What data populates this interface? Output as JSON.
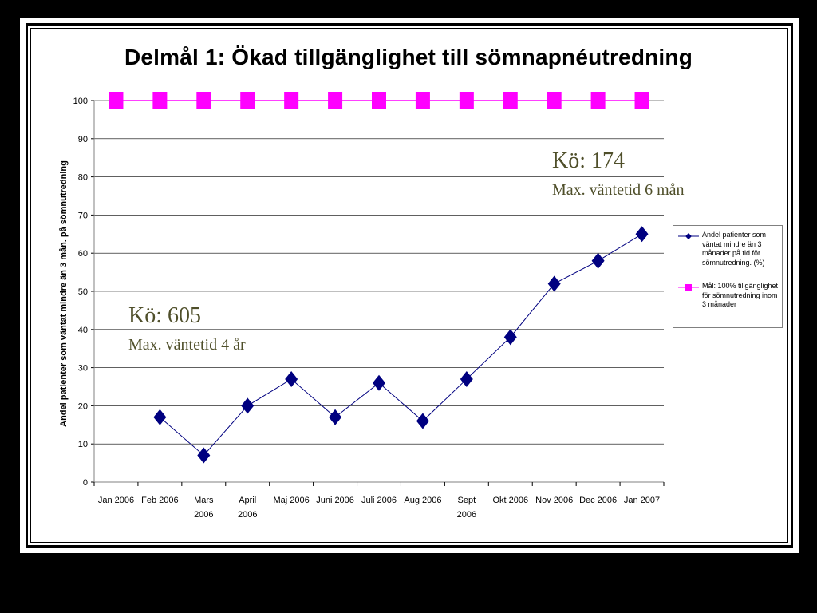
{
  "title": "Delmål 1: Ökad tillgänglighet till sömnapnéutredning",
  "annotations": {
    "left_queue": "Kö: 605",
    "left_wait": "Max. väntetid 4 år",
    "right_queue": "Kö: 174",
    "right_wait": "Max. väntetid 6 mån"
  },
  "chart_data": {
    "type": "line",
    "ylabel": "Andel patienter som väntat mindre än 3 mån. på sömnutredning",
    "xlabel": "",
    "ylim": [
      0,
      100
    ],
    "yticks": [
      0,
      10,
      20,
      30,
      40,
      50,
      60,
      70,
      80,
      90,
      100
    ],
    "grid": true,
    "legend_position": "right",
    "categories": [
      "Jan 2006",
      "Feb 2006",
      "Mars 2006",
      "April 2006",
      "Maj 2006",
      "Juni 2006",
      "Juli 2006",
      "Aug 2006",
      "Sept 2006",
      "Okt 2006",
      "Nov 2006",
      "Dec 2006",
      "Jan 2007"
    ],
    "category_lines": [
      [
        "Jan 2006"
      ],
      [
        "Feb 2006"
      ],
      [
        "Mars",
        "2006"
      ],
      [
        "April",
        "2006"
      ],
      [
        "Maj 2006"
      ],
      [
        "Juni 2006"
      ],
      [
        "Juli 2006"
      ],
      [
        "Aug 2006"
      ],
      [
        "Sept",
        "2006"
      ],
      [
        "Okt 2006"
      ],
      [
        "Nov 2006"
      ],
      [
        "Dec 2006"
      ],
      [
        "Jan 2007"
      ]
    ],
    "series": [
      {
        "name": "Andel patienter som väntat mindre än 3 månader på tid för sömnutredning. (%)",
        "legend_lines": [
          "Andel patienter som",
          "väntat mindre än 3",
          "månader på tid för",
          "sömnutredning. (%)"
        ],
        "marker": "diamond",
        "color": "#000080",
        "values": [
          null,
          17,
          7,
          20,
          27,
          17,
          26,
          16,
          27,
          38,
          52,
          58,
          65
        ]
      },
      {
        "name": "Mål: 100% tillgänglighet för sömnutredning inom 3 månader",
        "legend_lines": [
          "Mål: 100% tillgänglighet",
          "för sömnutredning inom",
          "3 månader"
        ],
        "marker": "square",
        "color": "#ff00ff",
        "values": [
          100,
          100,
          100,
          100,
          100,
          100,
          100,
          100,
          100,
          100,
          100,
          100,
          100
        ]
      }
    ]
  }
}
